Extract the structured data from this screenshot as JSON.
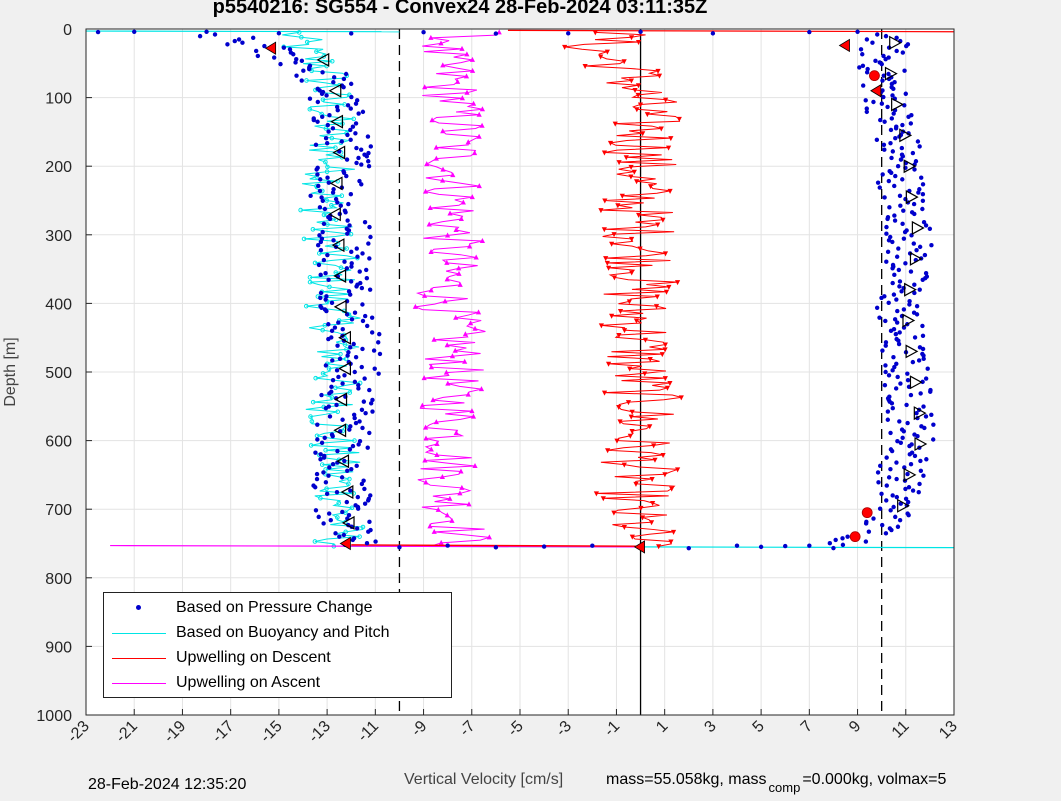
{
  "title": "p5540216: SG554 - Convex24 28-Feb-2024 03:11:35Z",
  "footer": {
    "timestamp": "28-Feb-2024 12:35:20",
    "mass_text": "mass=55.058kg, mass",
    "comp_sub": "comp",
    "rest_text": "=0.000kg, volmax=5"
  },
  "legend": [
    {
      "label": "Based on Pressure Change",
      "color": "#0000cc",
      "style": "dot"
    },
    {
      "label": "Based on Buoyancy and Pitch",
      "color": "#00e5e5",
      "style": "line"
    },
    {
      "label": "Upwelling on Descent",
      "color": "#ff0000",
      "style": "line"
    },
    {
      "label": "Upwelling on Ascent",
      "color": "#ff00ff",
      "style": "line"
    }
  ],
  "chart_data": {
    "type": "line",
    "title": "p5540216: SG554 - Convex24 28-Feb-2024 03:11:35Z",
    "xlabel": "Vertical Velocity [cm/s]",
    "ylabel": "Depth [m]",
    "xlim": [
      -23,
      13
    ],
    "ylim": [
      0,
      1000
    ],
    "y_reversed": true,
    "grid": true,
    "legend_position": "bottom-left",
    "xticks": [
      -23,
      -21,
      -19,
      -17,
      -15,
      -13,
      -11,
      -9,
      -7,
      -5,
      -3,
      -1,
      1,
      3,
      5,
      7,
      9,
      11,
      13
    ],
    "yticks": [
      0,
      100,
      200,
      300,
      400,
      500,
      600,
      700,
      800,
      900,
      1000
    ],
    "reference_lines": [
      {
        "x": -10,
        "style": "dashed"
      },
      {
        "x": 0,
        "style": "solid"
      },
      {
        "x": 10,
        "style": "dashed"
      }
    ],
    "series": [
      {
        "name": "Based on Pressure Change",
        "color": "#0000cc",
        "descent": {
          "depth": [
            0,
            5,
            30,
            60,
            100,
            150,
            200,
            250,
            300,
            350,
            400,
            450,
            500,
            550,
            600,
            650,
            700,
            740,
            755
          ],
          "velocity": [
            -22.5,
            -18,
            -15.5,
            -13.3,
            -12.8,
            -12.4,
            -12.2,
            -12.6,
            -12.2,
            -12.2,
            -12.1,
            -11.8,
            -12.0,
            -12.2,
            -12.3,
            -12.4,
            -12.4,
            -12.2,
            -12.0
          ]
        },
        "ascent": {
          "depth": [
            755,
            740,
            700,
            650,
            600,
            550,
            500,
            450,
            400,
            350,
            300,
            250,
            200,
            150,
            100,
            60,
            30,
            5
          ],
          "velocity": [
            8,
            9.5,
            10.5,
            10.8,
            11.3,
            11.2,
            11.0,
            10.8,
            10.7,
            11.0,
            11.2,
            10.9,
            10.8,
            10.6,
            10.2,
            10.0,
            10.0,
            10.5
          ]
        }
      },
      {
        "name": "Based on Buoyancy and Pitch",
        "color": "#00e5e5",
        "descent": {
          "depth": [
            5,
            30,
            60,
            100,
            150,
            200,
            250,
            300,
            350,
            400,
            450,
            500,
            550,
            600,
            650,
            700,
            740,
            755
          ],
          "velocity": [
            -14.5,
            -14.0,
            -13.0,
            -13.0,
            -12.9,
            -12.8,
            -13.1,
            -12.9,
            -12.8,
            -12.8,
            -12.6,
            -12.6,
            -12.8,
            -12.8,
            -12.6,
            -12.4,
            -12.5,
            -12.5
          ]
        }
      },
      {
        "name": "Upwelling on Descent",
        "color": "#ff0000",
        "depth": [
          5,
          30,
          60,
          100,
          150,
          200,
          250,
          300,
          350,
          400,
          450,
          500,
          550,
          600,
          650,
          700,
          740,
          755
        ],
        "velocity": [
          -1.0,
          -2.0,
          -0.5,
          0.0,
          0.2,
          0.0,
          -0.2,
          0.0,
          0.2,
          -0.3,
          0.0,
          -0.2,
          0.2,
          -0.2,
          0.0,
          -0.5,
          0.0,
          0.0
        ]
      },
      {
        "name": "Upwelling on Ascent",
        "color": "#ff00ff",
        "depth": [
          5,
          30,
          60,
          100,
          150,
          200,
          250,
          300,
          350,
          400,
          450,
          500,
          550,
          600,
          650,
          700,
          740,
          755
        ],
        "velocity": [
          -7.0,
          -8.5,
          -8.0,
          -7.8,
          -7.6,
          -7.8,
          -7.7,
          -7.8,
          -8.0,
          -8.1,
          -7.6,
          -7.8,
          -7.9,
          -7.8,
          -8.0,
          -7.8,
          -7.4,
          -7.5
        ]
      }
    ]
  }
}
